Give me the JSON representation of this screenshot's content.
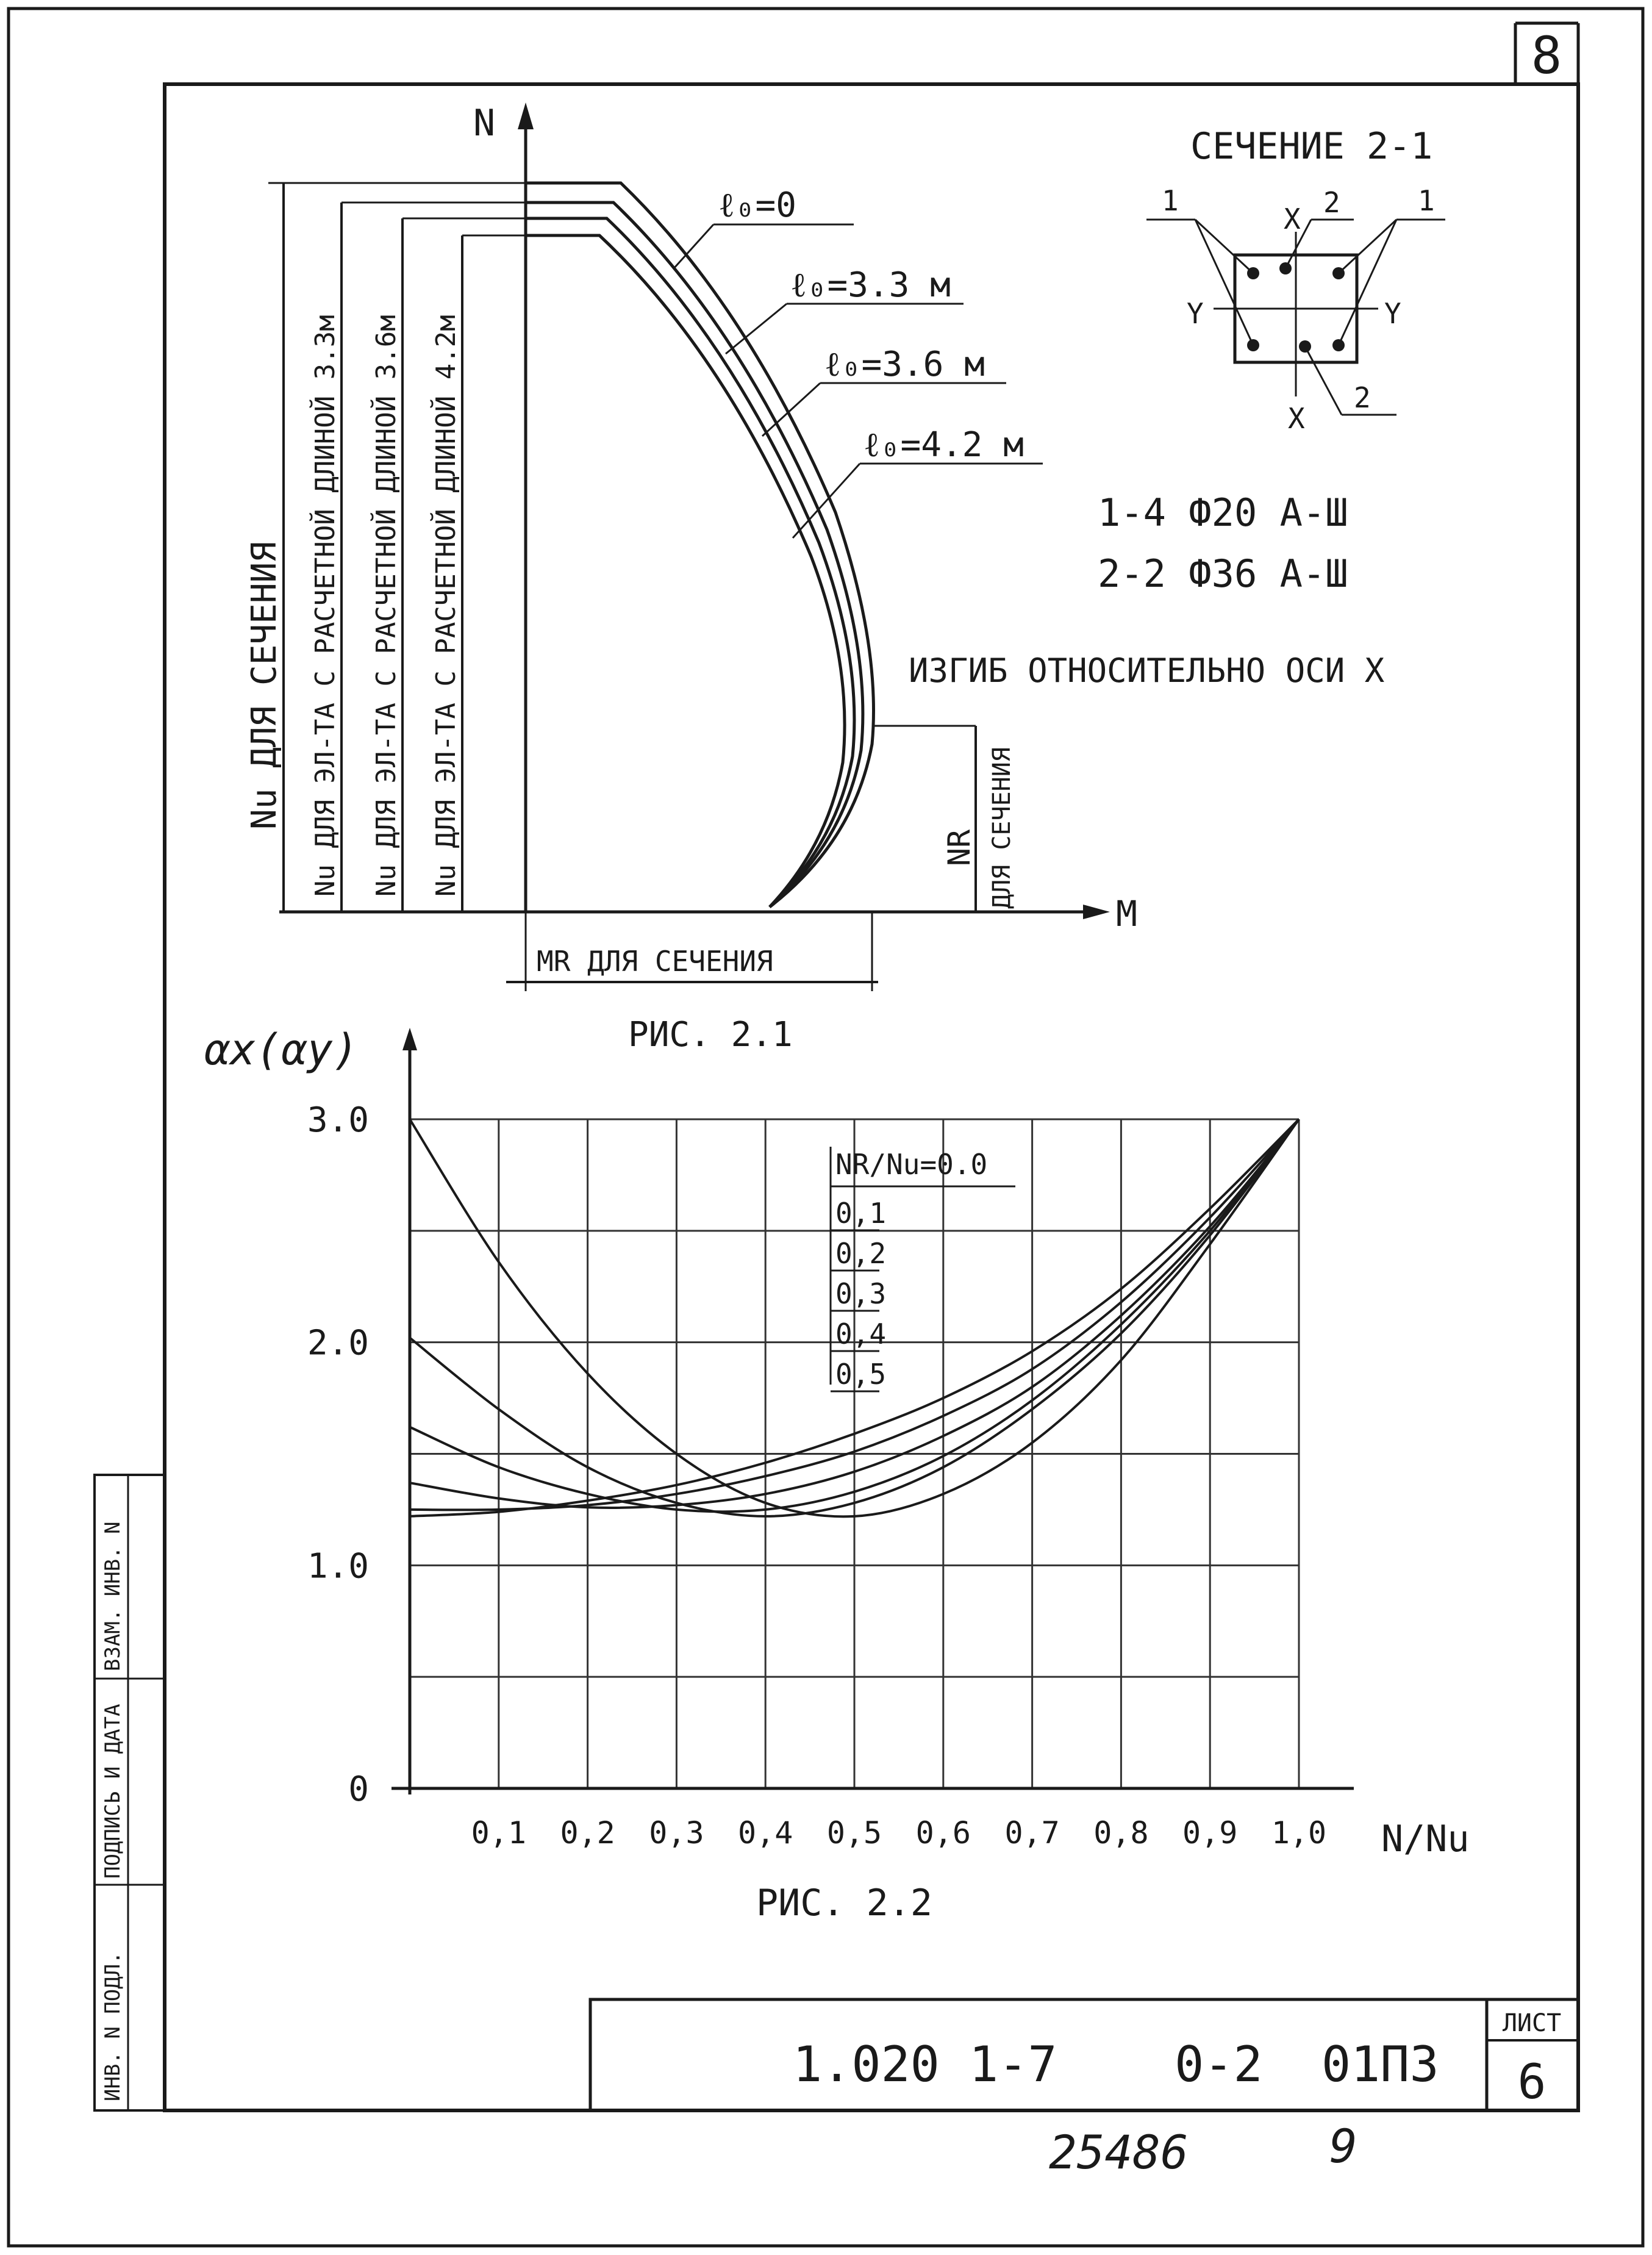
{
  "sheet": {
    "corner_number": "8",
    "code": "1.020 1-7    0-2  01П3",
    "list_label": "ЛИСТ",
    "list_number": "6",
    "handwritten_number": "25486",
    "handwritten_page": "9",
    "side_stamp": {
      "inv_original": "ИНВ. N ПОДЛ.",
      "signature_date": "ПОДПИСЬ И ДАТА",
      "replace_inv": "ВЗАМ. ИНВ. N"
    }
  },
  "fig1": {
    "caption": "РИС. 2.1",
    "axis_n": "N",
    "axis_m": "M",
    "curves": [
      {
        "label": "ℓ₀=0"
      },
      {
        "label": "ℓ₀=3.3 м"
      },
      {
        "label": "ℓ₀=3.6 м"
      },
      {
        "label": "ℓ₀=4.2 м"
      }
    ],
    "dims": {
      "nu_section": "Nu ДЛЯ СЕЧЕНИЯ",
      "nu_33": "Nu ДЛЯ ЭЛ-ТА С РАСЧЕТНОЙ ДЛИНОЙ 3.3м",
      "nu_36": "Nu ДЛЯ ЭЛ-ТА С РАСЧЕТНОЙ ДЛИНОЙ 3.6м",
      "nu_42": "Nu ДЛЯ ЭЛ-ТА С РАСЧЕТНОЙ ДЛИНОЙ 4.2м",
      "nr_a": "NR",
      "nr_b": "ДЛЯ СЕЧЕНИЯ",
      "mr_section": "MR ДЛЯ СЕЧЕНИЯ"
    }
  },
  "section": {
    "title": "СЕЧЕНИЕ 2-1",
    "labels": {
      "one": "1",
      "two": "2",
      "x": "X",
      "y": "Y"
    },
    "rebar_1": "1-4 Ф20 A-Ш",
    "rebar_2": "2-2 Ф36 A-Ш",
    "note": "ИЗГИБ ОТНОСИТЕЛЬНО ОСИ X"
  },
  "chart_data": {
    "type": "line",
    "title": "",
    "caption": "РИС. 2.2",
    "ylabel": "αx(αy)",
    "xlabel": "N/Nu",
    "xlim": [
      0,
      1.0
    ],
    "ylim": [
      0,
      3.0
    ],
    "y_ticks": [
      "0",
      "1.0",
      "2.0",
      "3.0"
    ],
    "x_ticks": [
      "0,1",
      "0,2",
      "0,3",
      "0,4",
      "0,5",
      "0,6",
      "0,7",
      "0,8",
      "0,9",
      "1,0"
    ],
    "legend_title": "NR/Nu=0.0",
    "legend_entries": [
      "0,1",
      "0,2",
      "0,3",
      "0,4",
      "0,5"
    ],
    "series": [
      {
        "param": "0.0",
        "x": [
          0.0,
          0.1,
          0.2,
          0.3,
          0.4,
          0.5,
          0.6,
          0.7,
          0.8,
          0.9,
          1.0
        ],
        "y": [
          3.0,
          2.36,
          1.86,
          1.5,
          1.28,
          1.22,
          1.32,
          1.55,
          1.92,
          2.44,
          3.0
        ]
      },
      {
        "param": "0.1",
        "x": [
          0.0,
          0.1,
          0.2,
          0.3,
          0.4,
          0.5,
          0.6,
          0.7,
          0.8,
          0.9,
          1.0
        ],
        "y": [
          2.02,
          1.7,
          1.44,
          1.28,
          1.22,
          1.28,
          1.44,
          1.7,
          2.04,
          2.48,
          3.0
        ]
      },
      {
        "param": "0.2",
        "x": [
          0.0,
          0.1,
          0.2,
          0.3,
          0.4,
          0.5,
          0.6,
          0.7,
          0.8,
          0.9,
          1.0
        ],
        "y": [
          1.62,
          1.44,
          1.32,
          1.25,
          1.25,
          1.33,
          1.49,
          1.74,
          2.08,
          2.5,
          3.0
        ]
      },
      {
        "param": "0.3",
        "x": [
          0.0,
          0.1,
          0.2,
          0.3,
          0.4,
          0.5,
          0.6,
          0.7,
          0.8,
          0.9,
          1.0
        ],
        "y": [
          1.37,
          1.3,
          1.26,
          1.27,
          1.32,
          1.42,
          1.58,
          1.8,
          2.12,
          2.52,
          3.0
        ]
      },
      {
        "param": "0.4",
        "x": [
          0.0,
          0.1,
          0.2,
          0.3,
          0.4,
          0.5,
          0.6,
          0.7,
          0.8,
          0.9,
          1.0
        ],
        "y": [
          1.25,
          1.25,
          1.27,
          1.32,
          1.4,
          1.51,
          1.67,
          1.88,
          2.18,
          2.56,
          3.0
        ]
      },
      {
        "param": "0.5",
        "x": [
          0.0,
          0.1,
          0.2,
          0.3,
          0.4,
          0.5,
          0.6,
          0.7,
          0.8,
          0.9,
          1.0
        ],
        "y": [
          1.22,
          1.24,
          1.29,
          1.36,
          1.46,
          1.59,
          1.75,
          1.96,
          2.24,
          2.6,
          3.0
        ]
      }
    ]
  }
}
